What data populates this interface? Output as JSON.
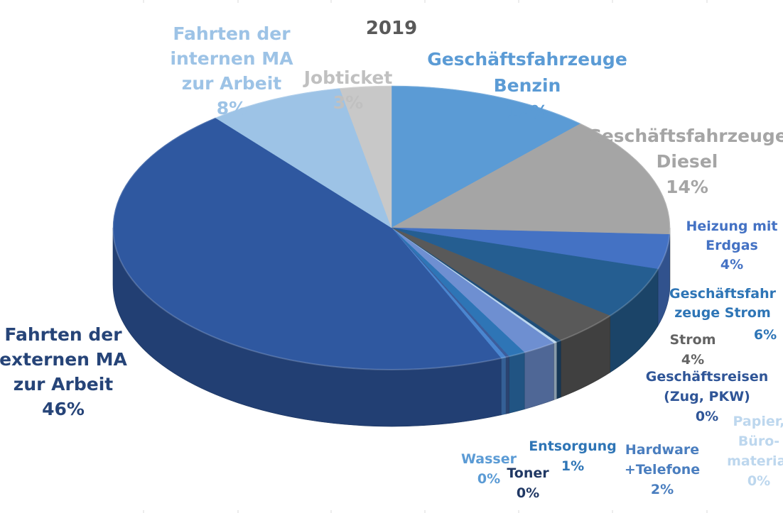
{
  "chart_data": {
    "type": "pie",
    "title": "2019",
    "categories": [
      "Geschäftsfahrzeuge Benzin",
      "Geschäftsfahrzeuge Diesel",
      "Heizung mit Erdgas",
      "Geschäftsfahrzeuge Strom",
      "Strom",
      "Geschäftsreisen (Zug, PKW)",
      "Papier, Büromaterial",
      "Hardware +Telefone",
      "Entsorgung",
      "Toner",
      "Wasser",
      "Fahrten der externen MA zur Arbeit",
      "Fahrten der internen MA zur Arbeit",
      "Jobticket"
    ],
    "values": [
      12,
      14,
      4,
      6,
      4,
      0.3,
      0.2,
      2,
      1,
      0.2,
      0.3,
      46,
      8,
      3
    ],
    "labels": [
      {
        "lines": [
          "Geschäftsfahrzeuge",
          "Benzin"
        ],
        "pct": "12%",
        "color": "#5b9bd5"
      },
      {
        "lines": [
          "Geschäftsfahrzeuge",
          "Diesel"
        ],
        "pct": "14%",
        "color": "#a5a5a5"
      },
      {
        "lines": [
          "Heizung mit",
          "Erdgas"
        ],
        "pct": "4%",
        "color": "#4472c4"
      },
      {
        "lines": [
          "Geschäftsfahr",
          "zeuge Strom"
        ],
        "pct": "6%",
        "color": "#2e75b6"
      },
      {
        "lines": [
          "Strom"
        ],
        "pct": "4%",
        "color": "#636363"
      },
      {
        "lines": [
          "Geschäftsreisen",
          "(Zug, PKW)"
        ],
        "pct": "0%",
        "color": "#2f5597"
      },
      {
        "lines": [
          "Papier,",
          "Büro-",
          "material"
        ],
        "pct": "0%",
        "color": "#bdd7ee"
      },
      {
        "lines": [
          "Hardware",
          "+Telefone"
        ],
        "pct": "2%",
        "color": "#4a7ebf"
      },
      {
        "lines": [
          "Entsorgung"
        ],
        "pct": "1%",
        "color": "#2e75b6"
      },
      {
        "lines": [
          "Toner"
        ],
        "pct": "0%",
        "color": "#203864"
      },
      {
        "lines": [
          "Wasser"
        ],
        "pct": "0%",
        "color": "#5b9bd5"
      },
      {
        "lines": [
          "Fahrten der",
          "externen MA",
          "zur Arbeit"
        ],
        "pct": "46%",
        "color": "#264478"
      },
      {
        "lines": [
          "Fahrten der",
          "internen MA",
          "zur Arbeit"
        ],
        "pct": "8%",
        "color": "#9dc3e6"
      },
      {
        "lines": [
          "Jobticket"
        ],
        "pct": "3%",
        "color": "#c0c0c0"
      }
    ],
    "colors": [
      "#5b9bd5",
      "#a5a5a5",
      "#4472c4",
      "#255e91",
      "#595959",
      "#1f4e79",
      "#bdd7ee",
      "#6e8fd1",
      "#2e75b6",
      "#3c5d9c",
      "#4a86d0",
      "#2f58a0",
      "#9dc3e6",
      "#c8c8c8"
    ],
    "legend": "none",
    "grid": false
  }
}
